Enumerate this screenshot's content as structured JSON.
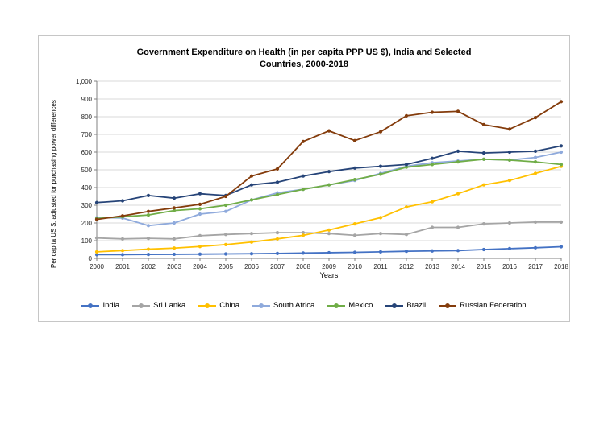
{
  "figure": {
    "title_line1": "Government Expenditure on Health (in per capita PPP US $), India and Selected",
    "title_line2": "Countries, 2000-2018",
    "y_axis_label": "Per capita US $, adjusted for purchasing power differences",
    "x_axis_label": "Years"
  },
  "chart_data": {
    "type": "line",
    "title": "Government Expenditure on Health (in per capita PPP US $), India and Selected Countries, 2000-2018",
    "xlabel": "Years",
    "ylabel": "Per capita US $, adjusted for purchasing power differences",
    "ylim": [
      0,
      1000
    ],
    "y_tick_interval": 100,
    "y_tick_labels": [
      "0",
      "100",
      "200",
      "300",
      "400",
      "500",
      "600",
      "700",
      "800",
      "900",
      "1,000"
    ],
    "grid": true,
    "legend_position": "bottom",
    "categories": [
      "2000",
      "2001",
      "2002",
      "2003",
      "2004",
      "2005",
      "2006",
      "2007",
      "2008",
      "2009",
      "2010",
      "2011",
      "2012",
      "2013",
      "2014",
      "2015",
      "2016",
      "2017",
      "2018"
    ],
    "series": [
      {
        "name": "India",
        "color": "#4472C4",
        "values": [
          21,
          21,
          22,
          23,
          24,
          25,
          26,
          28,
          30,
          32,
          34,
          37,
          40,
          42,
          44,
          50,
          55,
          60,
          66
        ]
      },
      {
        "name": "Sri Lanka",
        "color": "#A5A5A5",
        "values": [
          115,
          110,
          113,
          110,
          128,
          135,
          140,
          145,
          145,
          140,
          130,
          140,
          135,
          175,
          175,
          195,
          200,
          205,
          205
        ]
      },
      {
        "name": "China",
        "color": "#FFC000",
        "values": [
          37,
          44,
          52,
          58,
          67,
          78,
          92,
          110,
          130,
          160,
          195,
          230,
          290,
          320,
          365,
          415,
          440,
          480,
          520
        ]
      },
      {
        "name": "South Africa",
        "color": "#8FAADC",
        "values": [
          230,
          228,
          185,
          200,
          250,
          265,
          330,
          370,
          390,
          415,
          440,
          480,
          520,
          540,
          550,
          560,
          555,
          570,
          600
        ]
      },
      {
        "name": "Mexico",
        "color": "#70AD47",
        "values": [
          225,
          235,
          245,
          270,
          280,
          300,
          330,
          360,
          390,
          415,
          445,
          475,
          515,
          530,
          545,
          560,
          555,
          545,
          530
        ]
      },
      {
        "name": "Brazil",
        "color": "#264478",
        "values": [
          315,
          325,
          355,
          340,
          365,
          355,
          415,
          430,
          465,
          490,
          510,
          520,
          530,
          565,
          605,
          595,
          600,
          605,
          635
        ]
      },
      {
        "name": "Russian Federation",
        "color": "#843C0C",
        "values": [
          220,
          240,
          265,
          285,
          305,
          350,
          465,
          505,
          660,
          720,
          665,
          715,
          805,
          825,
          830,
          755,
          730,
          795,
          885
        ]
      }
    ]
  }
}
